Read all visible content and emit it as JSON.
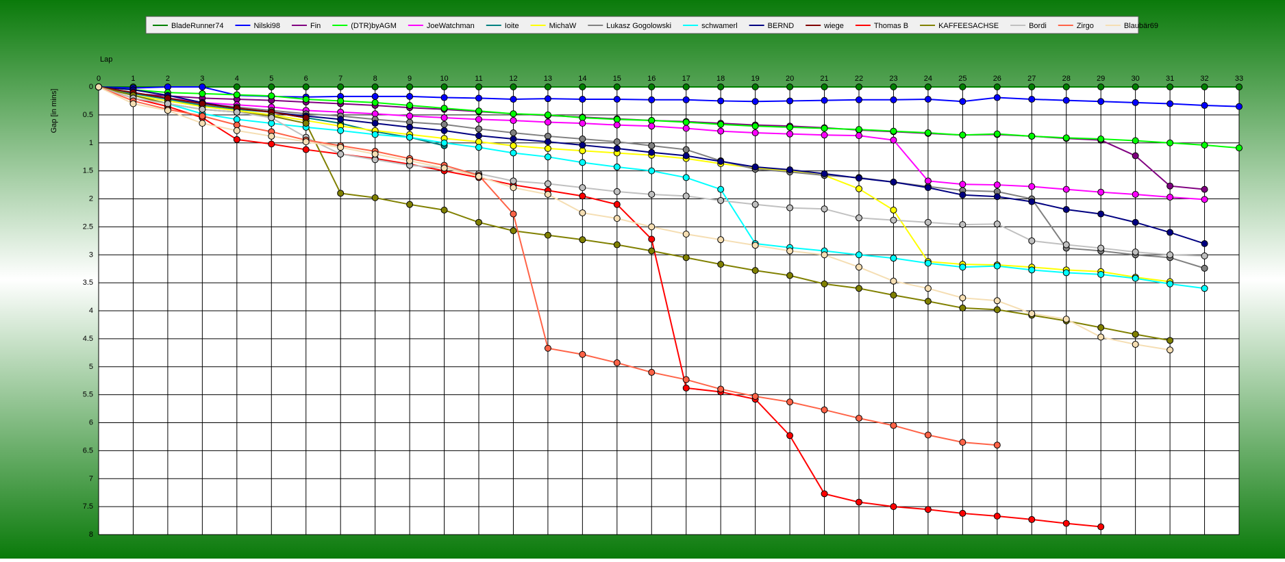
{
  "chart_data": {
    "type": "line",
    "x_label": "Lap",
    "y_label": "Gap [in mins]",
    "x": [
      0,
      1,
      2,
      3,
      4,
      5,
      6,
      7,
      8,
      9,
      10,
      11,
      12,
      13,
      14,
      15,
      16,
      17,
      18,
      19,
      20,
      21,
      22,
      23,
      24,
      25,
      26,
      27,
      28,
      29,
      30,
      31,
      32,
      33
    ],
    "xlim": [
      0,
      33
    ],
    "xticks": [
      0,
      1,
      2,
      3,
      4,
      5,
      6,
      7,
      8,
      9,
      10,
      11,
      12,
      13,
      14,
      15,
      16,
      17,
      18,
      19,
      20,
      21,
      22,
      23,
      24,
      25,
      26,
      27,
      28,
      29,
      30,
      31,
      32,
      33
    ],
    "ylim": [
      0,
      8
    ],
    "yticks": [
      0,
      0.5,
      1,
      1.5,
      2,
      2.5,
      3,
      3.5,
      4,
      4.5,
      5,
      5.5,
      6,
      6.5,
      7,
      7.5,
      8
    ],
    "y_inverted": true,
    "grid": true,
    "legend": "top",
    "series": [
      {
        "name": "BladeRunner74",
        "color": "#008000",
        "values": [
          0,
          0,
          0,
          0,
          0,
          0,
          0,
          0,
          0,
          0,
          0,
          0,
          0,
          0,
          0,
          0,
          0,
          0,
          0,
          0,
          0,
          0,
          0,
          0,
          0,
          0,
          0,
          0,
          0,
          0,
          0,
          0,
          0,
          0
        ]
      },
      {
        "name": "Nilski98",
        "color": "#0000ff",
        "values": [
          0,
          0.02,
          0,
          0,
          0.15,
          0.17,
          0.18,
          0.17,
          0.17,
          0.17,
          0.19,
          0.2,
          0.22,
          0.21,
          0.22,
          0.22,
          0.23,
          0.23,
          0.25,
          0.26,
          0.25,
          0.24,
          0.23,
          0.23,
          0.22,
          0.26,
          0.19,
          0.22,
          0.24,
          0.26,
          0.28,
          0.3,
          0.33,
          0.35
        ]
      },
      {
        "name": "Fin",
        "color": "#800080",
        "values": [
          0,
          0.12,
          0.16,
          0.2,
          0.22,
          0.24,
          0.27,
          0.3,
          0.33,
          0.37,
          0.4,
          0.44,
          0.48,
          0.51,
          0.54,
          0.57,
          0.6,
          0.62,
          0.65,
          0.68,
          0.7,
          0.73,
          0.77,
          0.8,
          0.83,
          0.86,
          0.85,
          0.88,
          0.92,
          0.95,
          1.23,
          1.77,
          1.83,
          null
        ]
      },
      {
        "name": "(DTR)byAGM",
        "color": "#00ff00",
        "values": [
          0,
          0.05,
          0.1,
          0.12,
          0.14,
          0.16,
          0.22,
          0.25,
          0.28,
          0.33,
          0.38,
          0.43,
          0.48,
          0.5,
          0.55,
          0.58,
          0.6,
          0.63,
          0.67,
          0.7,
          0.72,
          0.74,
          0.76,
          0.79,
          0.82,
          0.86,
          0.84,
          0.88,
          0.91,
          0.93,
          0.96,
          1.0,
          1.04,
          1.09
        ]
      },
      {
        "name": "JoeWatchman",
        "color": "#ff00ff",
        "values": [
          0,
          0.1,
          0.2,
          0.28,
          0.32,
          0.36,
          0.42,
          0.45,
          0.48,
          0.52,
          0.55,
          0.58,
          0.6,
          0.63,
          0.65,
          0.68,
          0.7,
          0.74,
          0.79,
          0.82,
          0.84,
          0.86,
          0.87,
          0.95,
          1.68,
          1.74,
          1.75,
          1.78,
          1.83,
          1.88,
          1.92,
          1.97,
          2.01,
          null
        ]
      },
      {
        "name": "Ioite",
        "color": "#008080",
        "values": [
          0,
          0.12,
          0.22,
          0.33,
          0.4,
          0.45,
          0.55,
          0.65,
          0.8,
          0.9,
          1.05,
          null,
          null,
          null,
          null,
          null,
          null,
          null,
          null,
          null,
          null,
          null,
          null,
          null,
          null,
          null,
          null,
          null,
          null,
          null,
          null,
          null,
          null,
          null
        ]
      },
      {
        "name": "MichaW",
        "color": "#ffff00",
        "values": [
          0,
          0.15,
          0.25,
          0.35,
          0.42,
          0.5,
          0.6,
          0.7,
          0.78,
          0.85,
          0.92,
          0.98,
          1.05,
          1.1,
          1.14,
          1.18,
          1.22,
          1.28,
          1.37,
          1.45,
          1.5,
          1.58,
          1.82,
          2.2,
          3.12,
          3.17,
          3.18,
          3.22,
          3.27,
          3.3,
          3.4,
          3.48,
          null,
          null
        ]
      },
      {
        "name": "Lukasz Gogolowski",
        "color": "#808080",
        "values": [
          0,
          0.1,
          0.2,
          0.3,
          0.36,
          0.42,
          0.48,
          0.52,
          0.58,
          0.63,
          0.67,
          0.75,
          0.82,
          0.88,
          0.93,
          0.98,
          1.05,
          1.12,
          1.32,
          1.47,
          1.52,
          1.58,
          1.62,
          1.7,
          1.78,
          1.85,
          1.87,
          2.0,
          2.88,
          2.93,
          3.0,
          3.05,
          3.24,
          null
        ]
      },
      {
        "name": "schwamerl",
        "color": "#00ffff",
        "values": [
          0,
          0.15,
          0.3,
          0.48,
          0.58,
          0.65,
          0.72,
          0.78,
          0.85,
          0.9,
          1.0,
          1.08,
          1.18,
          1.25,
          1.35,
          1.43,
          1.5,
          1.62,
          1.83,
          2.8,
          2.87,
          2.93,
          3.0,
          3.06,
          3.15,
          3.22,
          3.2,
          3.27,
          3.32,
          3.35,
          3.42,
          3.52,
          3.6,
          null
        ]
      },
      {
        "name": "BERND",
        "color": "#000080",
        "values": [
          0,
          0.05,
          0.15,
          0.28,
          0.38,
          0.45,
          0.52,
          0.58,
          0.65,
          0.72,
          0.78,
          0.87,
          0.93,
          0.98,
          1.04,
          1.1,
          1.17,
          1.23,
          1.33,
          1.43,
          1.48,
          1.55,
          1.63,
          1.7,
          1.8,
          1.93,
          1.96,
          2.05,
          2.19,
          2.27,
          2.42,
          2.6,
          2.8,
          null
        ]
      },
      {
        "name": "wiege",
        "color": "#800000",
        "values": [
          0,
          0.1,
          0.2,
          0.3,
          0.38,
          0.45,
          0.55,
          null,
          null,
          null,
          null,
          null,
          null,
          null,
          null,
          null,
          null,
          null,
          null,
          null,
          null,
          null,
          null,
          null,
          null,
          null,
          null,
          null,
          null,
          null,
          null,
          null,
          null,
          null
        ]
      },
      {
        "name": "Thomas B",
        "color": "#ff0000",
        "values": [
          0,
          0.2,
          0.35,
          0.55,
          0.94,
          1.02,
          1.12,
          1.2,
          1.28,
          1.38,
          1.5,
          1.62,
          1.75,
          1.85,
          1.95,
          2.1,
          2.72,
          5.38,
          5.45,
          5.58,
          6.23,
          7.27,
          7.42,
          7.5,
          7.55,
          7.62,
          7.67,
          7.73,
          7.8,
          7.86,
          null,
          null,
          null,
          null
        ]
      },
      {
        "name": "KAFFEESACHSE",
        "color": "#808000",
        "values": [
          0,
          0.15,
          0.3,
          0.4,
          0.45,
          0.52,
          0.65,
          1.9,
          1.98,
          2.1,
          2.2,
          2.42,
          2.57,
          2.65,
          2.73,
          2.82,
          2.93,
          3.05,
          3.17,
          3.28,
          3.37,
          3.52,
          3.6,
          3.72,
          3.83,
          3.95,
          3.98,
          4.08,
          4.18,
          4.3,
          4.42,
          4.53,
          null,
          null
        ]
      },
      {
        "name": "Bordi",
        "color": "#c0c0c0",
        "values": [
          0,
          0.2,
          0.3,
          0.4,
          0.45,
          0.55,
          0.9,
          1.2,
          1.3,
          1.4,
          1.45,
          1.55,
          1.68,
          1.73,
          1.8,
          1.87,
          1.92,
          1.95,
          2.03,
          2.1,
          2.16,
          2.18,
          2.34,
          2.38,
          2.42,
          2.46,
          2.45,
          2.75,
          2.82,
          2.88,
          2.95,
          3.0,
          3.02,
          null
        ]
      },
      {
        "name": "Zirgo",
        "color": "#ff6347",
        "values": [
          0,
          0.25,
          0.4,
          0.52,
          0.68,
          0.8,
          0.95,
          1.05,
          1.15,
          1.28,
          1.4,
          1.58,
          2.27,
          4.67,
          4.78,
          4.93,
          5.1,
          5.23,
          5.4,
          5.53,
          5.63,
          5.77,
          5.92,
          6.05,
          6.22,
          6.35,
          6.4,
          null,
          null,
          null,
          null,
          null,
          null,
          null
        ]
      },
      {
        "name": "Blaubär69",
        "color": "#f5deb3",
        "values": [
          0,
          0.3,
          0.42,
          0.65,
          0.78,
          0.88,
          0.98,
          1.08,
          1.2,
          1.32,
          1.45,
          1.6,
          1.8,
          1.92,
          2.25,
          2.35,
          2.5,
          2.63,
          2.73,
          2.83,
          2.93,
          3.0,
          3.22,
          3.47,
          3.6,
          3.77,
          3.82,
          4.05,
          4.15,
          4.47,
          4.6,
          4.7,
          null,
          null
        ]
      }
    ]
  }
}
